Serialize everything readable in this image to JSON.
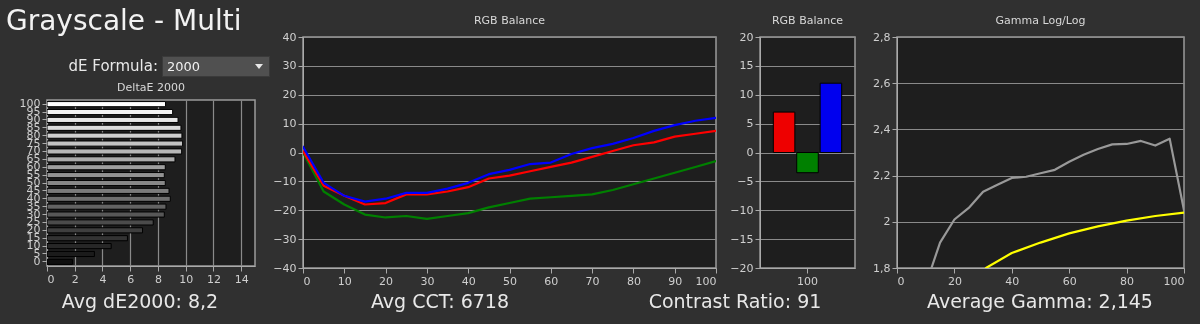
{
  "chart_data": [
    {
      "type": "other",
      "title": "Grayscale - Multi",
      "annotations": [
        "dE Formula:",
        "2000"
      ]
    },
    {
      "type": "bar",
      "orientation": "horizontal",
      "title": "DeltaE 2000",
      "annotations": [
        "Avg dE2000: 8,2"
      ],
      "categories": [
        "100",
        "95",
        "90",
        "85",
        "80",
        "75",
        "70",
        "65",
        "60",
        "55",
        "50",
        "45",
        "40",
        "35",
        "30",
        "25",
        "20",
        "15",
        "10",
        "5",
        "0"
      ],
      "values": [
        8.55,
        9.06,
        9.45,
        9.66,
        9.73,
        9.78,
        9.71,
        9.23,
        8.53,
        8.46,
        8.53,
        8.8,
        8.89,
        8.58,
        8.46,
        7.66,
        6.89,
        5.8,
        4.63,
        3.42,
        1.83
      ],
      "colors": [
        "#ffffff",
        "#f3f3f3",
        "#e7e7e7",
        "#dbdbdb",
        "#cfcfcf",
        "#c3c3c3",
        "#b7b7b7",
        "#ababab",
        "#9f9f9f",
        "#939393",
        "#878787",
        "#7b7b7b",
        "#6f6f6f",
        "#636363",
        "#575757",
        "#4b4b4b",
        "#3f3f3f",
        "#333333",
        "#272727",
        "#1b1b1b",
        "#0f0f0f"
      ],
      "xlim": [
        0,
        15
      ],
      "xticks": [
        0,
        2,
        4,
        6,
        8,
        10,
        12,
        14
      ],
      "grid": "x"
    },
    {
      "type": "line",
      "title": "RGB Balance",
      "annotations": [
        "Avg CCT: 6718",
        "Contrast Ratio: 91"
      ],
      "x": [
        0,
        5,
        10,
        15,
        20,
        25,
        30,
        35,
        40,
        45,
        50,
        55,
        60,
        65,
        70,
        75,
        80,
        85,
        90,
        95,
        100
      ],
      "series": [
        {
          "color": "#008000",
          "values": [
            0,
            -13.5,
            -18,
            -21.5,
            -22.5,
            -22,
            -23,
            -22,
            -21,
            -19,
            -17.5,
            -16,
            -15.5,
            -15,
            -14.5,
            -13,
            -11,
            -9,
            -7,
            -5,
            -3
          ]
        },
        {
          "color": "#ff0000",
          "values": [
            0.5,
            -11.5,
            -15,
            -18,
            -17.5,
            -14.5,
            -14.5,
            -13.5,
            -12,
            -9,
            -8,
            -6.5,
            -5,
            -3.5,
            -1.5,
            0.5,
            2.5,
            3.5,
            5.5,
            6.5,
            7.5
          ]
        },
        {
          "color": "#0000ff",
          "values": [
            2,
            -10.5,
            -15,
            -17,
            -16,
            -14,
            -14,
            -12.5,
            -10.5,
            -7.5,
            -6,
            -4,
            -3.5,
            -0.5,
            1.5,
            3,
            5,
            7.5,
            9.5,
            11,
            12
          ]
        }
      ],
      "xlim": [
        0,
        100
      ],
      "xticks": [
        0,
        10,
        20,
        30,
        40,
        50,
        60,
        70,
        80,
        90,
        100
      ],
      "ylim": [
        -40,
        40
      ],
      "yticks": [
        -40,
        -30,
        -20,
        -10,
        0,
        10,
        20,
        30,
        40
      ],
      "grid": "y"
    },
    {
      "type": "bar",
      "title": "RGB Balance",
      "categories": [
        "100"
      ],
      "series": [
        {
          "color": "#ee0000",
          "values": [
            7
          ]
        },
        {
          "color": "#008000",
          "values": [
            -3.5
          ]
        },
        {
          "color": "#0000ee",
          "values": [
            12
          ]
        }
      ],
      "ylim": [
        -20,
        20
      ],
      "yticks": [
        -20,
        -15,
        -10,
        -5,
        0,
        5,
        10,
        15,
        20
      ],
      "grid": "y"
    },
    {
      "type": "line",
      "title": "Gamma Log/Log",
      "annotations": [
        "Average Gamma: 2,145"
      ],
      "series": [
        {
          "color": "#999999",
          "x": [
            12,
            15,
            20,
            25,
            30,
            35,
            40,
            45,
            50,
            55,
            60,
            65,
            70,
            75,
            80,
            85,
            90,
            95,
            100
          ],
          "values": [
            1.8,
            1.91,
            2.01,
            2.06,
            2.13,
            2.16,
            2.19,
            2.195,
            2.21,
            2.225,
            2.26,
            2.29,
            2.315,
            2.335,
            2.337,
            2.35,
            2.33,
            2.36,
            2.05
          ]
        },
        {
          "color": "#ffff00",
          "x": [
            31,
            40,
            50,
            60,
            70,
            80,
            90,
            100
          ],
          "values": [
            1.8,
            1.865,
            1.91,
            1.95,
            1.98,
            2.005,
            2.025,
            2.04
          ]
        }
      ],
      "xlim": [
        0,
        100
      ],
      "xticks": [
        0,
        20,
        40,
        60,
        80,
        100
      ],
      "ylim": [
        1.8,
        2.8
      ],
      "yticks": [
        {
          "value": 1.8,
          "label": "1,8"
        },
        {
          "value": 2,
          "label": "2"
        },
        {
          "value": 2.2,
          "label": "2,2"
        },
        {
          "value": 2.4,
          "label": "2,4"
        },
        {
          "value": 2.6,
          "label": "2,6"
        },
        {
          "value": 2.8,
          "label": "2,8"
        }
      ],
      "grid": "y"
    }
  ]
}
